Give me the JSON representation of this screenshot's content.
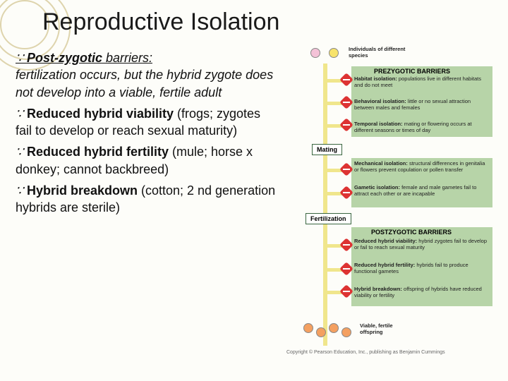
{
  "title": "Reproductive Isolation",
  "bullets": [
    {
      "lead_bold": "Post-zygotic",
      "lead_rest": " barriers:",
      "underline_lead": true,
      "italic_body": true,
      "body": "fertilization occurs, but the hybrid zygote does not develop into a viable, fertile adult"
    },
    {
      "lead_bold": "Reduced hybrid viability",
      "lead_rest": "",
      "underline_lead": false,
      "italic_body": false,
      "body": " (frogs; zygotes fail to develop or reach sexual maturity)"
    },
    {
      "lead_bold": "Reduced hybrid fertility",
      "lead_rest": "",
      "underline_lead": false,
      "italic_body": false,
      "body": " (mule; horse x donkey; cannot backbreed)"
    },
    {
      "lead_bold": "Hybrid breakdown",
      "lead_rest": "",
      "underline_lead": false,
      "italic_body": false,
      "body": " (cotton; 2 nd generation hybrids are sterile)"
    }
  ],
  "diagram": {
    "top_label": "Individuals of different species",
    "circle_colors": {
      "species_a": "#f4c2d7",
      "species_b": "#f7e36b",
      "offspring": "#f4a060"
    },
    "prezygotic": {
      "heading": "PREZYGOTIC BARRIERS",
      "bg": "#b7d4a8",
      "items": [
        {
          "name": "Habitat isolation:",
          "desc": "populations live in different habitats and do not meet"
        },
        {
          "name": "Behavioral isolation:",
          "desc": "little or no sexual attraction between males and females"
        },
        {
          "name": "Temporal isolation:",
          "desc": "mating or flowering occurs at different seasons or times of day"
        }
      ]
    },
    "mating_label": "Mating",
    "post_mating": [
      {
        "name": "Mechanical isolation:",
        "desc": "structural differences in genitalia or flowers prevent copulation or pollen transfer"
      },
      {
        "name": "Gametic isolation:",
        "desc": "female and male gametes fail to attract each other or are incapable"
      }
    ],
    "fertilization_label": "Fertilization",
    "postzygotic": {
      "heading": "POSTZYGOTIC BARRIERS",
      "bg": "#b7d4a8",
      "items": [
        {
          "name": "Reduced hybrid viability:",
          "desc": "hybrid zygotes fail to develop or fail to reach sexual maturity"
        },
        {
          "name": "Reduced hybrid fertility:",
          "desc": "hybrids fail to produce functional gametes"
        },
        {
          "name": "Hybrid breakdown:",
          "desc": "offspring of hybrids have reduced viability or fertility"
        }
      ]
    },
    "bottom_label": "Viable, fertile offspring",
    "copyright": "Copyright © Pearson Education, Inc., publishing as Benjamin Cummings"
  }
}
